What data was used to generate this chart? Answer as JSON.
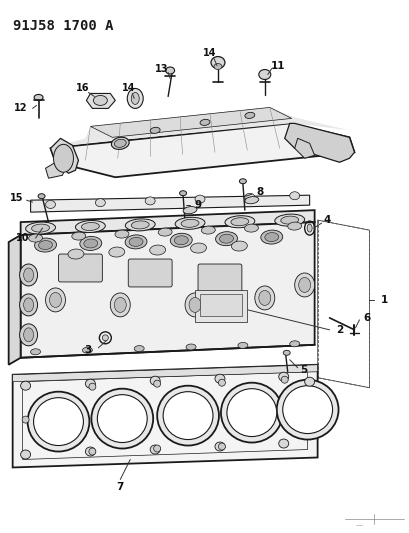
{
  "title": "91J58 1700 A",
  "bg_color": "#ffffff",
  "title_fontsize": 10,
  "title_fontweight": "bold",
  "fig_width": 4.1,
  "fig_height": 5.33,
  "dpi": 100,
  "line_color": "#1a1a1a",
  "label_fontsize": 7.5,
  "annotation_color": "#111111",
  "lw_main": 0.9,
  "lw_thick": 1.3
}
